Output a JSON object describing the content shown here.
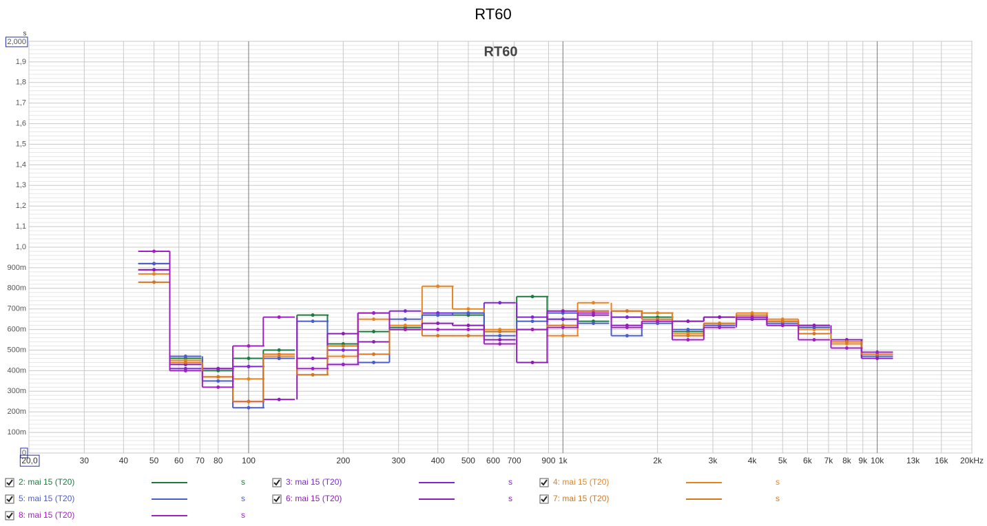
{
  "chart_data": {
    "type": "step",
    "title": "RT60",
    "inner_title": "RT60",
    "unit": "s",
    "x": [
      50,
      63,
      80,
      100,
      125,
      160,
      200,
      250,
      315,
      400,
      500,
      630,
      800,
      1000,
      1250,
      1600,
      2000,
      2500,
      3150,
      4000,
      5000,
      6300,
      8000,
      10000
    ],
    "series": [
      {
        "name": "2: mai 15 (T20)",
        "color": "#1b7a3e",
        "values": [
          0.92,
          0.46,
          0.4,
          0.46,
          0.5,
          0.67,
          0.53,
          0.59,
          0.61,
          0.67,
          0.67,
          0.59,
          0.76,
          0.65,
          0.64,
          0.66,
          0.66,
          0.59,
          0.62,
          0.66,
          0.64,
          0.61,
          0.54,
          0.47
        ]
      },
      {
        "name": "3: mai 15 (T20)",
        "color": "#7a26d6",
        "values": [
          0.89,
          0.41,
          0.41,
          0.42,
          0.46,
          0.46,
          0.5,
          0.68,
          0.69,
          0.68,
          0.68,
          0.73,
          0.66,
          0.65,
          0.69,
          0.66,
          0.68,
          0.64,
          0.66,
          0.66,
          0.64,
          0.62,
          0.55,
          0.48
        ]
      },
      {
        "name": "4: mai 15 (T20)",
        "color": "#e8831c",
        "values": [
          0.87,
          0.45,
          0.37,
          0.36,
          0.47,
          0.38,
          0.47,
          0.65,
          0.62,
          0.81,
          0.7,
          0.6,
          0.6,
          0.57,
          0.73,
          0.69,
          0.68,
          0.58,
          0.63,
          0.68,
          0.65,
          0.6,
          0.53,
          0.48
        ]
      },
      {
        "name": "5: mai 15 (T20)",
        "color": "#4a5ccb",
        "values": [
          0.92,
          0.47,
          0.35,
          0.22,
          0.46,
          0.64,
          0.43,
          0.44,
          0.65,
          0.67,
          0.68,
          0.57,
          0.64,
          0.68,
          0.63,
          0.57,
          0.63,
          0.6,
          0.62,
          0.65,
          0.63,
          0.61,
          0.54,
          0.47
        ]
      },
      {
        "name": "6: mai 15 (T20)",
        "color": "#8b1cb4",
        "values": [
          0.89,
          0.43,
          0.41,
          0.25,
          0.26,
          0.46,
          0.58,
          0.54,
          0.6,
          0.63,
          0.62,
          0.55,
          0.44,
          0.69,
          0.67,
          0.62,
          0.64,
          0.64,
          0.66,
          0.65,
          0.62,
          0.62,
          0.55,
          0.46
        ]
      },
      {
        "name": "7: mai 15 (T20)",
        "color": "#d4761f",
        "values": [
          0.83,
          0.44,
          0.37,
          0.25,
          0.48,
          0.38,
          0.52,
          0.48,
          0.6,
          0.57,
          0.57,
          0.59,
          0.6,
          0.62,
          0.69,
          0.69,
          0.65,
          0.57,
          0.63,
          0.67,
          0.64,
          0.58,
          0.54,
          0.48
        ]
      },
      {
        "name": "8: mai 15 (T20)",
        "color": "#a21ec4",
        "values": [
          0.98,
          0.4,
          0.32,
          0.52,
          0.66,
          0.41,
          0.43,
          0.68,
          0.6,
          0.6,
          0.6,
          0.53,
          0.6,
          0.61,
          0.68,
          0.61,
          0.64,
          0.55,
          0.61,
          0.66,
          0.62,
          0.55,
          0.51,
          0.49
        ]
      }
    ],
    "xscale": "log",
    "xlim": [
      20,
      20000
    ],
    "xticks": [
      {
        "value": 20,
        "label": "20,0"
      },
      30,
      40,
      50,
      60,
      70,
      80,
      100,
      200,
      300,
      400,
      500,
      600,
      700,
      900,
      {
        "value": 1000,
        "label": "1k"
      },
      {
        "value": 2000,
        "label": "2k"
      },
      {
        "value": 3000,
        "label": "3k"
      },
      {
        "value": 4000,
        "label": "4k"
      },
      {
        "value": 5000,
        "label": "5k"
      },
      {
        "value": 6000,
        "label": "6k"
      },
      {
        "value": 7000,
        "label": "7k"
      },
      {
        "value": 8000,
        "label": "8k"
      },
      {
        "value": 9000,
        "label": "9k"
      },
      {
        "value": 10000,
        "label": "10k"
      },
      {
        "value": 13000,
        "label": "13k"
      },
      {
        "value": 16000,
        "label": "16k"
      },
      {
        "value": 20000,
        "label": "20kHz"
      }
    ],
    "ylim": [
      0,
      2
    ],
    "yticks": [
      0,
      {
        "value": 0.1,
        "label": "100m"
      },
      {
        "value": 0.2,
        "label": "200m"
      },
      {
        "value": 0.3,
        "label": "300m"
      },
      {
        "value": 0.4,
        "label": "400m"
      },
      {
        "value": 0.5,
        "label": "500m"
      },
      {
        "value": 0.6,
        "label": "600m"
      },
      {
        "value": 0.7,
        "label": "700m"
      },
      {
        "value": 0.8,
        "label": "800m"
      },
      {
        "value": 0.9,
        "label": "900m"
      },
      {
        "value": 1,
        "label": "1,0"
      },
      {
        "value": 1.1,
        "label": "1,1"
      },
      {
        "value": 1.2,
        "label": "1,2"
      },
      {
        "value": 1.3,
        "label": "1,3"
      },
      {
        "value": 1.4,
        "label": "1,4"
      },
      {
        "value": 1.5,
        "label": "1,5"
      },
      {
        "value": 1.6,
        "label": "1,6"
      },
      {
        "value": 1.7,
        "label": "1,7"
      },
      {
        "value": 1.8,
        "label": "1,8"
      },
      {
        "value": 1.9,
        "label": "1,9"
      },
      {
        "value": 2,
        "label": "2,000"
      }
    ],
    "grid": true
  }
}
